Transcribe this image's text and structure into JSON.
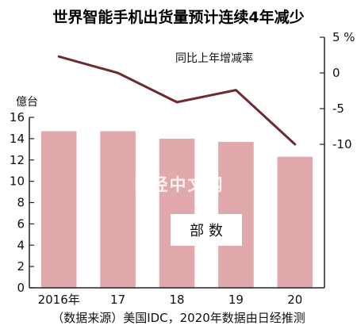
{
  "chart_data": {
    "type": "bar+line",
    "title": "世界智能手机出货量预计连续4年减少",
    "categories": [
      "2016年",
      "17",
      "18",
      "19",
      "20"
    ],
    "bars": {
      "unit_label": "億台",
      "values": [
        14.7,
        14.7,
        14.0,
        13.7,
        12.3
      ],
      "ylim": [
        0,
        16
      ],
      "yticks": [
        0,
        2,
        4,
        6,
        8,
        10,
        12,
        14,
        16
      ],
      "color": "#e2a9ad",
      "annotation": "部 数"
    },
    "line": {
      "name": "同比上年增减率",
      "values": [
        2.3,
        0.0,
        -4.1,
        -2.4,
        -10.0
      ],
      "ylim": [
        -10,
        5
      ],
      "yticks": [
        -10,
        -5,
        0,
        5
      ],
      "tick_labels": [
        "-10",
        "-5",
        "0",
        "5 %"
      ],
      "color": "#6e2a31"
    },
    "grid": false,
    "footer": "（数据来源）美国IDC，2020年数据由日经推测",
    "watermark": "日经中文网"
  }
}
